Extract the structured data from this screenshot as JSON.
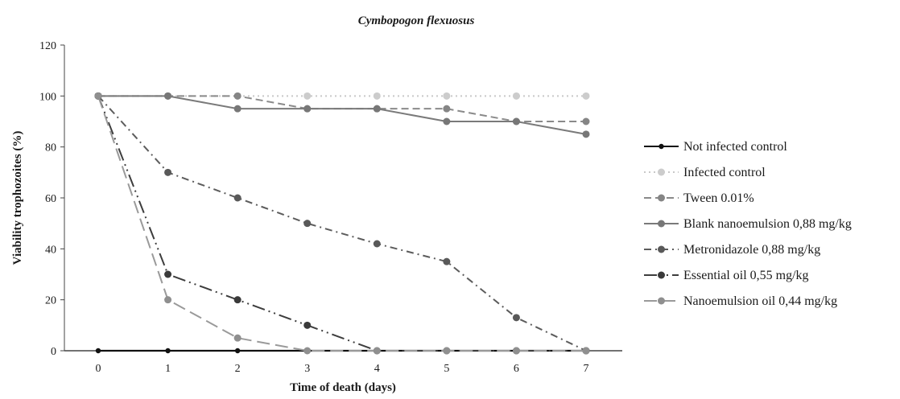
{
  "chart_data": {
    "type": "line",
    "title": "Cymbopogon flexuosus",
    "xlabel": "Time of death (days)",
    "ylabel": "Viability trophozoites (%)",
    "x": [
      0,
      1,
      2,
      3,
      4,
      5,
      6,
      7
    ],
    "xlim": [
      0,
      7
    ],
    "ylim": [
      0,
      120
    ],
    "yticks": [
      0,
      20,
      40,
      60,
      80,
      100,
      120
    ],
    "grid": false,
    "legend_position": "right",
    "series": [
      {
        "name": "Not infected control",
        "color": "#111111",
        "dash": "solid",
        "marker_color": "#111111",
        "values": [
          0,
          0,
          0,
          0,
          0,
          0,
          0,
          0
        ]
      },
      {
        "name": "Infected control",
        "color": "#c8c8c8",
        "dash": "dot",
        "marker_color": "#cccccc",
        "values": [
          100,
          100,
          100,
          100,
          100,
          100,
          100,
          100
        ]
      },
      {
        "name": "Tween 0.01%",
        "color": "#8a8a8a",
        "dash": "dash",
        "marker_color": "#858585",
        "values": [
          100,
          100,
          100,
          95,
          95,
          95,
          90,
          90
        ]
      },
      {
        "name": "Blank nanoemulsion 0,88 mg/kg",
        "color": "#7a7a7a",
        "dash": "solid",
        "marker_color": "#777777",
        "values": [
          100,
          100,
          95,
          95,
          95,
          90,
          90,
          85
        ]
      },
      {
        "name": "Metronidazole 0,88 mg/kg",
        "color": "#5c5c5c",
        "dash": "dashdot",
        "marker_color": "#595959",
        "values": [
          100,
          70,
          60,
          50,
          42,
          35,
          13,
          0
        ]
      },
      {
        "name": "Essential oil 0,55 mg/kg",
        "color": "#3d3d3d",
        "dash": "longdashdotdot",
        "marker_color": "#3a3a3a",
        "values": [
          100,
          30,
          20,
          10,
          0,
          0,
          0,
          0
        ]
      },
      {
        "name": "Nanoemulsion oil 0,44 mg/kg",
        "color": "#9a9a9a",
        "dash": "longdash",
        "marker_color": "#8f8f8f",
        "values": [
          100,
          20,
          5,
          0,
          0,
          0,
          0,
          0
        ]
      }
    ]
  }
}
